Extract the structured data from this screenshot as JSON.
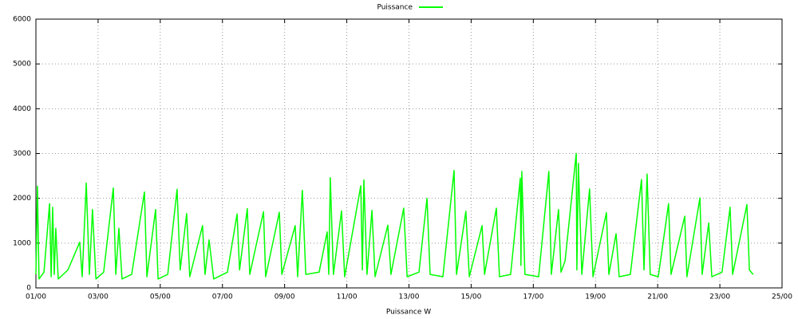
{
  "chart_data": {
    "type": "line",
    "legend": "top-center",
    "x_label": "Puissance W",
    "xlim": [
      1,
      25
    ],
    "ylim": [
      0,
      6000
    ],
    "xticks": [
      {
        "value": 1,
        "label": "01/00"
      },
      {
        "value": 3,
        "label": "03/00"
      },
      {
        "value": 5,
        "label": "05/00"
      },
      {
        "value": 7,
        "label": "07/00"
      },
      {
        "value": 9,
        "label": "09/00"
      },
      {
        "value": 11,
        "label": "11/00"
      },
      {
        "value": 13,
        "label": "13/00"
      },
      {
        "value": 15,
        "label": "15/00"
      },
      {
        "value": 17,
        "label": "17/00"
      },
      {
        "value": 19,
        "label": "19/00"
      },
      {
        "value": 21,
        "label": "21/00"
      },
      {
        "value": 23,
        "label": "23/00"
      },
      {
        "value": 25,
        "label": "25/00"
      }
    ],
    "yticks": [
      0,
      1000,
      2000,
      3000,
      4000,
      5000,
      6000
    ],
    "grid": true,
    "x": [
      1.0,
      1.05,
      1.1,
      1.26,
      1.44,
      1.49,
      1.54,
      1.59,
      1.64,
      1.72,
      2.03,
      2.41,
      2.49,
      2.62,
      2.72,
      2.82,
      2.93,
      3.18,
      3.49,
      3.57,
      3.67,
      3.77,
      4.08,
      4.49,
      4.57,
      4.85,
      4.93,
      5.24,
      5.54,
      5.64,
      5.85,
      5.95,
      6.36,
      6.44,
      6.57,
      6.72,
      7.16,
      7.47,
      7.55,
      7.8,
      7.88,
      8.32,
      8.39,
      8.83,
      8.91,
      9.34,
      9.42,
      9.57,
      9.68,
      10.11,
      10.37,
      10.42,
      10.47,
      10.57,
      10.83,
      10.93,
      11.45,
      11.5,
      11.55,
      11.65,
      11.81,
      11.91,
      12.32,
      12.42,
      12.83,
      12.94,
      13.32,
      13.58,
      13.68,
      14.09,
      14.45,
      14.53,
      14.83,
      14.94,
      15.35,
      15.43,
      15.81,
      15.91,
      16.27,
      16.58,
      16.6,
      16.63,
      16.73,
      17.17,
      17.5,
      17.58,
      17.81,
      17.89,
      18.02,
      18.38,
      18.4,
      18.45,
      18.56,
      18.81,
      18.92,
      19.35,
      19.43,
      19.66,
      19.76,
      20.12,
      20.48,
      20.56,
      20.66,
      20.76,
      21.02,
      21.35,
      21.43,
      21.87,
      21.94,
      22.36,
      22.43,
      22.64,
      22.74,
      23.07,
      23.33,
      23.41,
      23.87,
      23.95,
      24.07
    ],
    "series": [
      {
        "name": "Puissance",
        "color": "#00ff00",
        "values": [
          300,
          2270,
          200,
          350,
          1880,
          250,
          1800,
          300,
          1330,
          200,
          400,
          1020,
          250,
          2340,
          300,
          1750,
          200,
          350,
          2230,
          300,
          1330,
          200,
          300,
          2140,
          250,
          1750,
          200,
          300,
          2200,
          400,
          1660,
          250,
          1390,
          300,
          1070,
          200,
          350,
          1650,
          400,
          1770,
          300,
          1700,
          250,
          1690,
          300,
          1390,
          250,
          2180,
          300,
          350,
          1250,
          300,
          2460,
          300,
          1720,
          250,
          2280,
          400,
          2410,
          300,
          1730,
          250,
          1400,
          300,
          1780,
          250,
          350,
          2000,
          300,
          250,
          2620,
          300,
          1710,
          250,
          1390,
          300,
          1780,
          250,
          300,
          2450,
          500,
          2600,
          300,
          250,
          2600,
          300,
          1750,
          350,
          600,
          3000,
          400,
          2780,
          300,
          2210,
          250,
          1680,
          300,
          1210,
          250,
          300,
          2420,
          400,
          2540,
          300,
          250,
          1880,
          300,
          1600,
          250,
          2010,
          300,
          1450,
          250,
          350,
          1800,
          300,
          1860,
          400,
          300
        ]
      }
    ]
  }
}
